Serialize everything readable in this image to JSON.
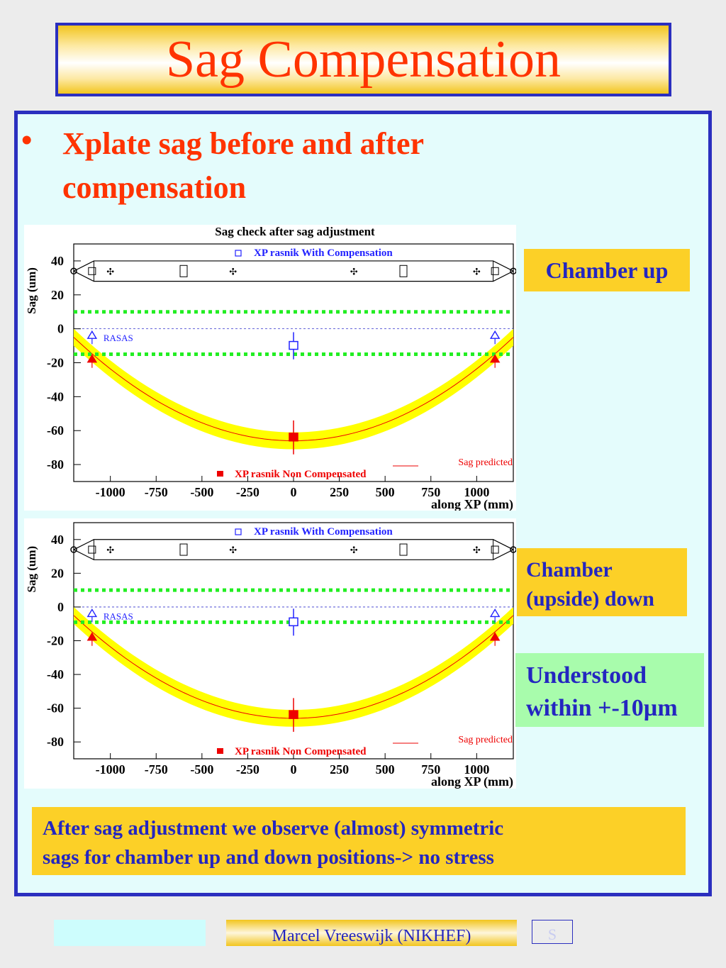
{
  "slide": {
    "title": "Sag Compensation",
    "bullet_marker": "•",
    "bullet_line1": "Xplate sag before and after",
    "bullet_line2": "compensation",
    "labels": {
      "chamber_up": "Chamber up",
      "chamber_down_line1": "Chamber",
      "chamber_down_line2": "(upside) down",
      "understood_line1": "Understood",
      "understood_line2": "within +-10µm"
    },
    "conclusion_line1": "After sag adjustment we observe (almost) symmetric",
    "conclusion_line2": "sags for chamber up and down positions-> no stress",
    "footer_author": "Marcel Vreeswijk (NIKHEF)",
    "footer_slide": "S"
  },
  "colors": {
    "title_red": "#ff3300",
    "border_blue": "#2b2fbf",
    "label_yellow": "#fcd027",
    "label_green": "#a8fcac",
    "text_blue": "#2426c0",
    "panel_bg": "#e4fcfc",
    "band_yellow": "#ffff00",
    "green_dotted": "#22ee22",
    "compensated_blue": "#2222ff",
    "non_compensated_red": "#ee0000"
  },
  "chart_data": [
    {
      "type": "scatter",
      "title": "Sag check after sag adjustment",
      "xlabel": "along XP (mm)",
      "ylabel": "Sag (um)",
      "xlim": [
        -1200,
        1200
      ],
      "ylim": [
        -90,
        50
      ],
      "xticks": [
        -1000,
        -750,
        -500,
        -250,
        0,
        250,
        500,
        750,
        1000
      ],
      "yticks": [
        40,
        20,
        0,
        -20,
        -40,
        -60,
        -80
      ],
      "legend_top": "XP rasnik With Compensation",
      "legend_bottom": "XP rasnik Non Compensated",
      "legend_curve": "Sag predicted",
      "rasas_label": "RASAS",
      "series": [
        {
          "name": "XP rasnik With Compensation",
          "marker": "open-square",
          "x": [
            0
          ],
          "y": [
            -10
          ],
          "yerr": [
            8
          ]
        },
        {
          "name": "XP rasnik Non Compensated",
          "marker": "filled-square",
          "x": [
            0
          ],
          "y": [
            -64
          ],
          "yerr": [
            10
          ]
        },
        {
          "name": "RASAS",
          "marker": "open-triangle",
          "x": [
            -1100,
            1100
          ],
          "y": [
            -4,
            -4
          ]
        },
        {
          "name": "RASAS non compensated",
          "marker": "filled-triangle",
          "x": [
            -1100,
            1100
          ],
          "y": [
            -18,
            -18
          ]
        },
        {
          "name": "Sag predicted",
          "type": "curve",
          "y_at_edges": -5,
          "y_at_center": -66,
          "band_halfwidth": 5
        }
      ],
      "green_lines": [
        10,
        -15
      ]
    },
    {
      "type": "scatter",
      "title": "",
      "xlabel": "along XP (mm)",
      "ylabel": "Sag (um)",
      "xlim": [
        -1200,
        1200
      ],
      "ylim": [
        -90,
        50
      ],
      "xticks": [
        -1000,
        -750,
        -500,
        -250,
        0,
        250,
        500,
        750,
        1000
      ],
      "yticks": [
        40,
        20,
        0,
        -20,
        -40,
        -60,
        -80
      ],
      "legend_top": "XP rasnik With Compensation",
      "legend_bottom": "XP rasnik Non Compensated",
      "legend_curve": "Sag predicted",
      "rasas_label": "RASAS",
      "series": [
        {
          "name": "XP rasnik With Compensation",
          "marker": "open-square",
          "x": [
            0
          ],
          "y": [
            -9
          ],
          "yerr": [
            8
          ]
        },
        {
          "name": "XP rasnik Non Compensated",
          "marker": "filled-square",
          "x": [
            0
          ],
          "y": [
            -64
          ],
          "yerr": [
            10
          ]
        },
        {
          "name": "RASAS",
          "marker": "open-triangle",
          "x": [
            -1100,
            1100
          ],
          "y": [
            -4,
            -4
          ]
        },
        {
          "name": "RASAS non compensated",
          "marker": "filled-triangle",
          "x": [
            -1100,
            1100
          ],
          "y": [
            -18,
            -18
          ]
        },
        {
          "name": "Sag predicted",
          "type": "curve",
          "y_at_edges": -5,
          "y_at_center": -66,
          "band_halfwidth": 5
        }
      ],
      "green_lines": [
        10,
        -9
      ]
    }
  ]
}
